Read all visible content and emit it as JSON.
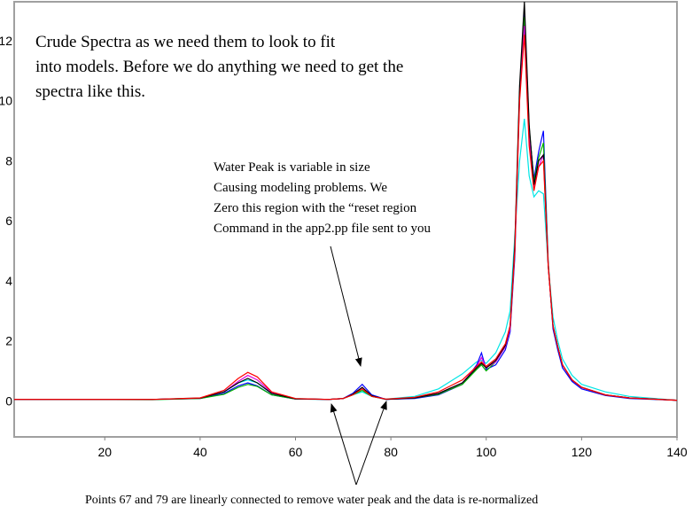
{
  "chart_data": {
    "type": "line",
    "title": "",
    "xlabel": "",
    "ylabel": "",
    "xlim": [
      1,
      140
    ],
    "ylim": [
      -1.2,
      13.3
    ],
    "grid": false,
    "xticks": [
      20,
      40,
      60,
      80,
      100,
      120,
      140
    ],
    "yticks": [
      0,
      2,
      4,
      6,
      8,
      10,
      12
    ],
    "x": [
      1,
      30,
      40,
      45,
      48,
      50,
      52,
      55,
      60,
      67,
      70,
      72,
      74,
      76,
      79,
      85,
      90,
      95,
      98,
      99,
      100,
      102,
      104,
      105,
      106,
      107,
      108,
      109,
      110,
      111,
      112,
      113,
      114,
      115,
      116,
      118,
      120,
      125,
      130,
      140
    ],
    "series": [
      {
        "name": "spectrum-cyan",
        "color": "#00e5e5",
        "values": [
          0.05,
          0.05,
          0.1,
          0.3,
          0.6,
          0.7,
          0.6,
          0.25,
          0.08,
          0.05,
          0.08,
          0.2,
          0.3,
          0.15,
          0.06,
          0.15,
          0.4,
          0.9,
          1.3,
          1.35,
          1.25,
          1.6,
          2.3,
          3,
          5.5,
          8,
          9.4,
          7.5,
          6.8,
          7,
          6.9,
          4.5,
          2.8,
          2,
          1.4,
          0.85,
          0.55,
          0.3,
          0.15,
          0.02
        ]
      },
      {
        "name": "spectrum-blue",
        "color": "#0000ff",
        "values": [
          0.05,
          0.05,
          0.08,
          0.25,
          0.5,
          0.6,
          0.5,
          0.2,
          0.06,
          0.05,
          0.08,
          0.25,
          0.55,
          0.2,
          0.05,
          0.08,
          0.2,
          0.55,
          1.2,
          1.6,
          1.05,
          1.2,
          1.7,
          2.3,
          4.8,
          10.2,
          13,
          9,
          7.4,
          8.3,
          9,
          4.6,
          2.4,
          1.7,
          1.1,
          0.65,
          0.4,
          0.18,
          0.08,
          0.02
        ]
      },
      {
        "name": "spectrum-green",
        "color": "#00b000",
        "values": [
          0.05,
          0.04,
          0.08,
          0.22,
          0.45,
          0.55,
          0.48,
          0.2,
          0.06,
          0.05,
          0.08,
          0.2,
          0.35,
          0.15,
          0.05,
          0.1,
          0.22,
          0.55,
          1.05,
          1.2,
          1.0,
          1.3,
          1.8,
          2.4,
          5,
          10.3,
          12.8,
          9.1,
          7.3,
          8.1,
          8.6,
          4.6,
          2.5,
          1.8,
          1.2,
          0.7,
          0.45,
          0.2,
          0.1,
          0.02
        ]
      },
      {
        "name": "spectrum-magenta",
        "color": "#e000e0",
        "values": [
          0.05,
          0.05,
          0.09,
          0.3,
          0.65,
          0.85,
          0.7,
          0.28,
          0.07,
          0.05,
          0.08,
          0.22,
          0.45,
          0.16,
          0.05,
          0.1,
          0.25,
          0.6,
          1.15,
          1.45,
          1.1,
          1.3,
          1.8,
          2.4,
          5,
          10.1,
          12.5,
          8.8,
          7.1,
          7.8,
          8.2,
          4.5,
          2.5,
          1.8,
          1.2,
          0.7,
          0.45,
          0.2,
          0.1,
          0.02
        ]
      },
      {
        "name": "spectrum-black",
        "color": "#000000",
        "values": [
          0.05,
          0.05,
          0.09,
          0.3,
          0.6,
          0.75,
          0.6,
          0.25,
          0.07,
          0.05,
          0.08,
          0.22,
          0.45,
          0.17,
          0.05,
          0.1,
          0.25,
          0.6,
          1.1,
          1.25,
          1.1,
          1.35,
          1.85,
          2.5,
          5.2,
          10.5,
          13.3,
          9.2,
          7.2,
          8,
          8.2,
          4.5,
          2.5,
          1.8,
          1.2,
          0.7,
          0.45,
          0.2,
          0.1,
          0.02
        ]
      },
      {
        "name": "spectrum-red",
        "color": "#ff0000",
        "values": [
          0.05,
          0.05,
          0.1,
          0.35,
          0.75,
          0.95,
          0.8,
          0.3,
          0.08,
          0.05,
          0.08,
          0.2,
          0.4,
          0.15,
          0.06,
          0.12,
          0.3,
          0.7,
          1.15,
          1.3,
          1.15,
          1.4,
          1.9,
          2.5,
          5,
          10,
          12.2,
          8.5,
          7,
          7.8,
          8,
          4.5,
          2.5,
          1.8,
          1.2,
          0.7,
          0.45,
          0.2,
          0.1,
          0.02
        ]
      }
    ],
    "annotations": {
      "intro": [
        "Crude Spectra as we need them to look to fit",
        "into models. Before we do anything we need to get the",
        "spectra like this."
      ],
      "water_peak": [
        "Water Peak is variable in size",
        "Causing modeling problems. We",
        "Zero this region with the “reset region",
        "Command in the app2.pp file sent to you"
      ],
      "points": "Points 67 and 79 are linearly connected to remove water peak and the data is re-normalized"
    }
  }
}
